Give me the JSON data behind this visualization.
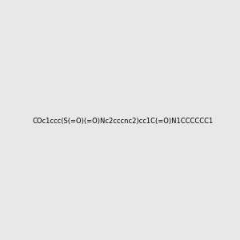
{
  "smiles": "COc1ccc(S(=O)(=O)Nc2cccnc2)cc1C(=O)N1CCCCCC1",
  "img_size": [
    300,
    300
  ],
  "background_color": "#e8e8e8",
  "title": ""
}
